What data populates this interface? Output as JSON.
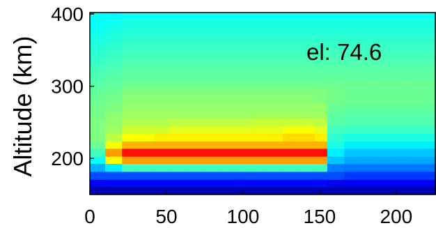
{
  "chart_data": {
    "type": "heatmap",
    "title": "",
    "xlabel": "",
    "ylabel": "Altitude (km)",
    "annotation": "el: 74.6",
    "xlim": [
      0,
      226
    ],
    "ylim": [
      150,
      402
    ],
    "xticks": [
      0,
      50,
      100,
      150,
      200
    ],
    "yticks": [
      200,
      300,
      400
    ],
    "x_edges": [
      0,
      10,
      21,
      31,
      42,
      52,
      63,
      73,
      84,
      94,
      105,
      115,
      126,
      136,
      147,
      155,
      166,
      176,
      187,
      197,
      208,
      218,
      226
    ],
    "y_edges": [
      150,
      161,
      171,
      182,
      193,
      203,
      214,
      224,
      235,
      245,
      256,
      266,
      277,
      288,
      298,
      309,
      319,
      330,
      340,
      351,
      361,
      372,
      382,
      392,
      402
    ],
    "rows_bottom_to_top": [
      [
        0.05,
        0.05,
        0.05,
        0.05,
        0.05,
        0.05,
        0.05,
        0.05,
        0.05,
        0.05,
        0.05,
        0.05,
        0.05,
        0.05,
        0.05,
        0.05,
        0.05,
        0.05,
        0.05,
        0.05,
        0.05,
        0.05
      ],
      [
        0.12,
        0.13,
        0.13,
        0.13,
        0.13,
        0.13,
        0.13,
        0.13,
        0.13,
        0.13,
        0.13,
        0.13,
        0.13,
        0.13,
        0.13,
        0.11,
        0.11,
        0.11,
        0.11,
        0.11,
        0.11,
        0.11
      ],
      [
        0.2,
        0.2,
        0.2,
        0.2,
        0.2,
        0.2,
        0.2,
        0.2,
        0.2,
        0.2,
        0.2,
        0.2,
        0.2,
        0.2,
        0.2,
        0.2,
        0.18,
        0.18,
        0.18,
        0.18,
        0.18,
        0.18
      ],
      [
        0.3,
        0.36,
        0.44,
        0.44,
        0.44,
        0.44,
        0.44,
        0.44,
        0.44,
        0.44,
        0.44,
        0.44,
        0.44,
        0.44,
        0.44,
        0.25,
        0.24,
        0.24,
        0.24,
        0.24,
        0.24,
        0.24
      ],
      [
        0.38,
        0.62,
        0.72,
        0.72,
        0.72,
        0.72,
        0.72,
        0.72,
        0.72,
        0.72,
        0.72,
        0.72,
        0.72,
        0.72,
        0.72,
        0.32,
        0.29,
        0.29,
        0.29,
        0.29,
        0.29,
        0.29
      ],
      [
        0.44,
        0.72,
        0.86,
        0.86,
        0.86,
        0.86,
        0.86,
        0.86,
        0.86,
        0.86,
        0.86,
        0.86,
        0.86,
        0.86,
        0.86,
        0.36,
        0.32,
        0.32,
        0.32,
        0.32,
        0.32,
        0.32
      ],
      [
        0.48,
        0.62,
        0.7,
        0.7,
        0.7,
        0.7,
        0.7,
        0.7,
        0.7,
        0.7,
        0.7,
        0.7,
        0.7,
        0.7,
        0.7,
        0.4,
        0.36,
        0.36,
        0.36,
        0.36,
        0.36,
        0.36
      ],
      [
        0.5,
        0.56,
        0.62,
        0.62,
        0.64,
        0.64,
        0.64,
        0.64,
        0.64,
        0.64,
        0.64,
        0.64,
        0.66,
        0.66,
        0.64,
        0.42,
        0.4,
        0.4,
        0.4,
        0.4,
        0.4,
        0.4
      ],
      [
        0.5,
        0.53,
        0.58,
        0.58,
        0.58,
        0.6,
        0.6,
        0.6,
        0.6,
        0.6,
        0.6,
        0.6,
        0.62,
        0.62,
        0.6,
        0.44,
        0.43,
        0.43,
        0.43,
        0.43,
        0.43,
        0.43
      ],
      [
        0.5,
        0.52,
        0.55,
        0.55,
        0.55,
        0.56,
        0.56,
        0.56,
        0.56,
        0.56,
        0.57,
        0.57,
        0.57,
        0.57,
        0.56,
        0.46,
        0.45,
        0.45,
        0.45,
        0.45,
        0.45,
        0.45
      ],
      [
        0.49,
        0.51,
        0.53,
        0.53,
        0.53,
        0.53,
        0.53,
        0.53,
        0.53,
        0.53,
        0.53,
        0.53,
        0.53,
        0.53,
        0.53,
        0.47,
        0.46,
        0.46,
        0.46,
        0.46,
        0.46,
        0.46
      ],
      [
        0.49,
        0.5,
        0.52,
        0.52,
        0.52,
        0.52,
        0.52,
        0.52,
        0.52,
        0.52,
        0.52,
        0.52,
        0.52,
        0.52,
        0.52,
        0.48,
        0.47,
        0.47,
        0.47,
        0.47,
        0.47,
        0.47
      ],
      [
        0.48,
        0.49,
        0.51,
        0.51,
        0.51,
        0.51,
        0.51,
        0.51,
        0.51,
        0.51,
        0.51,
        0.51,
        0.51,
        0.51,
        0.5,
        0.49,
        0.48,
        0.48,
        0.48,
        0.48,
        0.48,
        0.48
      ],
      [
        0.47,
        0.48,
        0.5,
        0.5,
        0.5,
        0.5,
        0.5,
        0.5,
        0.5,
        0.5,
        0.5,
        0.5,
        0.5,
        0.5,
        0.5,
        0.49,
        0.48,
        0.48,
        0.48,
        0.48,
        0.48,
        0.48
      ],
      [
        0.46,
        0.47,
        0.48,
        0.48,
        0.48,
        0.48,
        0.48,
        0.48,
        0.48,
        0.48,
        0.48,
        0.48,
        0.48,
        0.48,
        0.48,
        0.48,
        0.48,
        0.48,
        0.48,
        0.48,
        0.48,
        0.48
      ],
      [
        0.45,
        0.46,
        0.47,
        0.47,
        0.47,
        0.47,
        0.47,
        0.47,
        0.47,
        0.47,
        0.47,
        0.47,
        0.47,
        0.47,
        0.47,
        0.47,
        0.47,
        0.47,
        0.47,
        0.47,
        0.47,
        0.47
      ],
      [
        0.44,
        0.45,
        0.46,
        0.46,
        0.46,
        0.46,
        0.46,
        0.46,
        0.46,
        0.46,
        0.46,
        0.46,
        0.46,
        0.46,
        0.46,
        0.46,
        0.46,
        0.46,
        0.46,
        0.46,
        0.46,
        0.46
      ],
      [
        0.43,
        0.44,
        0.45,
        0.45,
        0.45,
        0.45,
        0.45,
        0.45,
        0.45,
        0.45,
        0.45,
        0.45,
        0.45,
        0.45,
        0.45,
        0.45,
        0.45,
        0.45,
        0.45,
        0.45,
        0.45,
        0.45
      ],
      [
        0.42,
        0.43,
        0.44,
        0.44,
        0.44,
        0.44,
        0.44,
        0.44,
        0.44,
        0.44,
        0.44,
        0.44,
        0.44,
        0.44,
        0.44,
        0.44,
        0.44,
        0.44,
        0.44,
        0.44,
        0.44,
        0.44
      ],
      [
        0.41,
        0.42,
        0.43,
        0.43,
        0.43,
        0.43,
        0.43,
        0.43,
        0.43,
        0.43,
        0.43,
        0.43,
        0.43,
        0.43,
        0.43,
        0.43,
        0.43,
        0.43,
        0.43,
        0.43,
        0.43,
        0.43
      ],
      [
        0.4,
        0.41,
        0.42,
        0.42,
        0.42,
        0.42,
        0.42,
        0.42,
        0.42,
        0.42,
        0.42,
        0.42,
        0.42,
        0.42,
        0.42,
        0.42,
        0.42,
        0.42,
        0.42,
        0.42,
        0.42,
        0.42
      ],
      [
        0.39,
        0.4,
        0.41,
        0.41,
        0.41,
        0.41,
        0.41,
        0.41,
        0.41,
        0.41,
        0.41,
        0.41,
        0.41,
        0.41,
        0.41,
        0.41,
        0.41,
        0.41,
        0.41,
        0.41,
        0.41,
        0.41
      ],
      [
        0.38,
        0.39,
        0.4,
        0.4,
        0.4,
        0.4,
        0.4,
        0.4,
        0.4,
        0.4,
        0.4,
        0.4,
        0.4,
        0.4,
        0.4,
        0.4,
        0.4,
        0.4,
        0.4,
        0.4,
        0.4,
        0.4
      ],
      [
        0.38,
        0.38,
        0.39,
        0.39,
        0.39,
        0.39,
        0.39,
        0.39,
        0.39,
        0.39,
        0.39,
        0.39,
        0.39,
        0.39,
        0.39,
        0.39,
        0.39,
        0.39,
        0.39,
        0.39,
        0.39,
        0.39
      ]
    ],
    "colormap": "jet",
    "value_range": [
      0,
      1
    ],
    "grid": false,
    "legend": "none"
  }
}
